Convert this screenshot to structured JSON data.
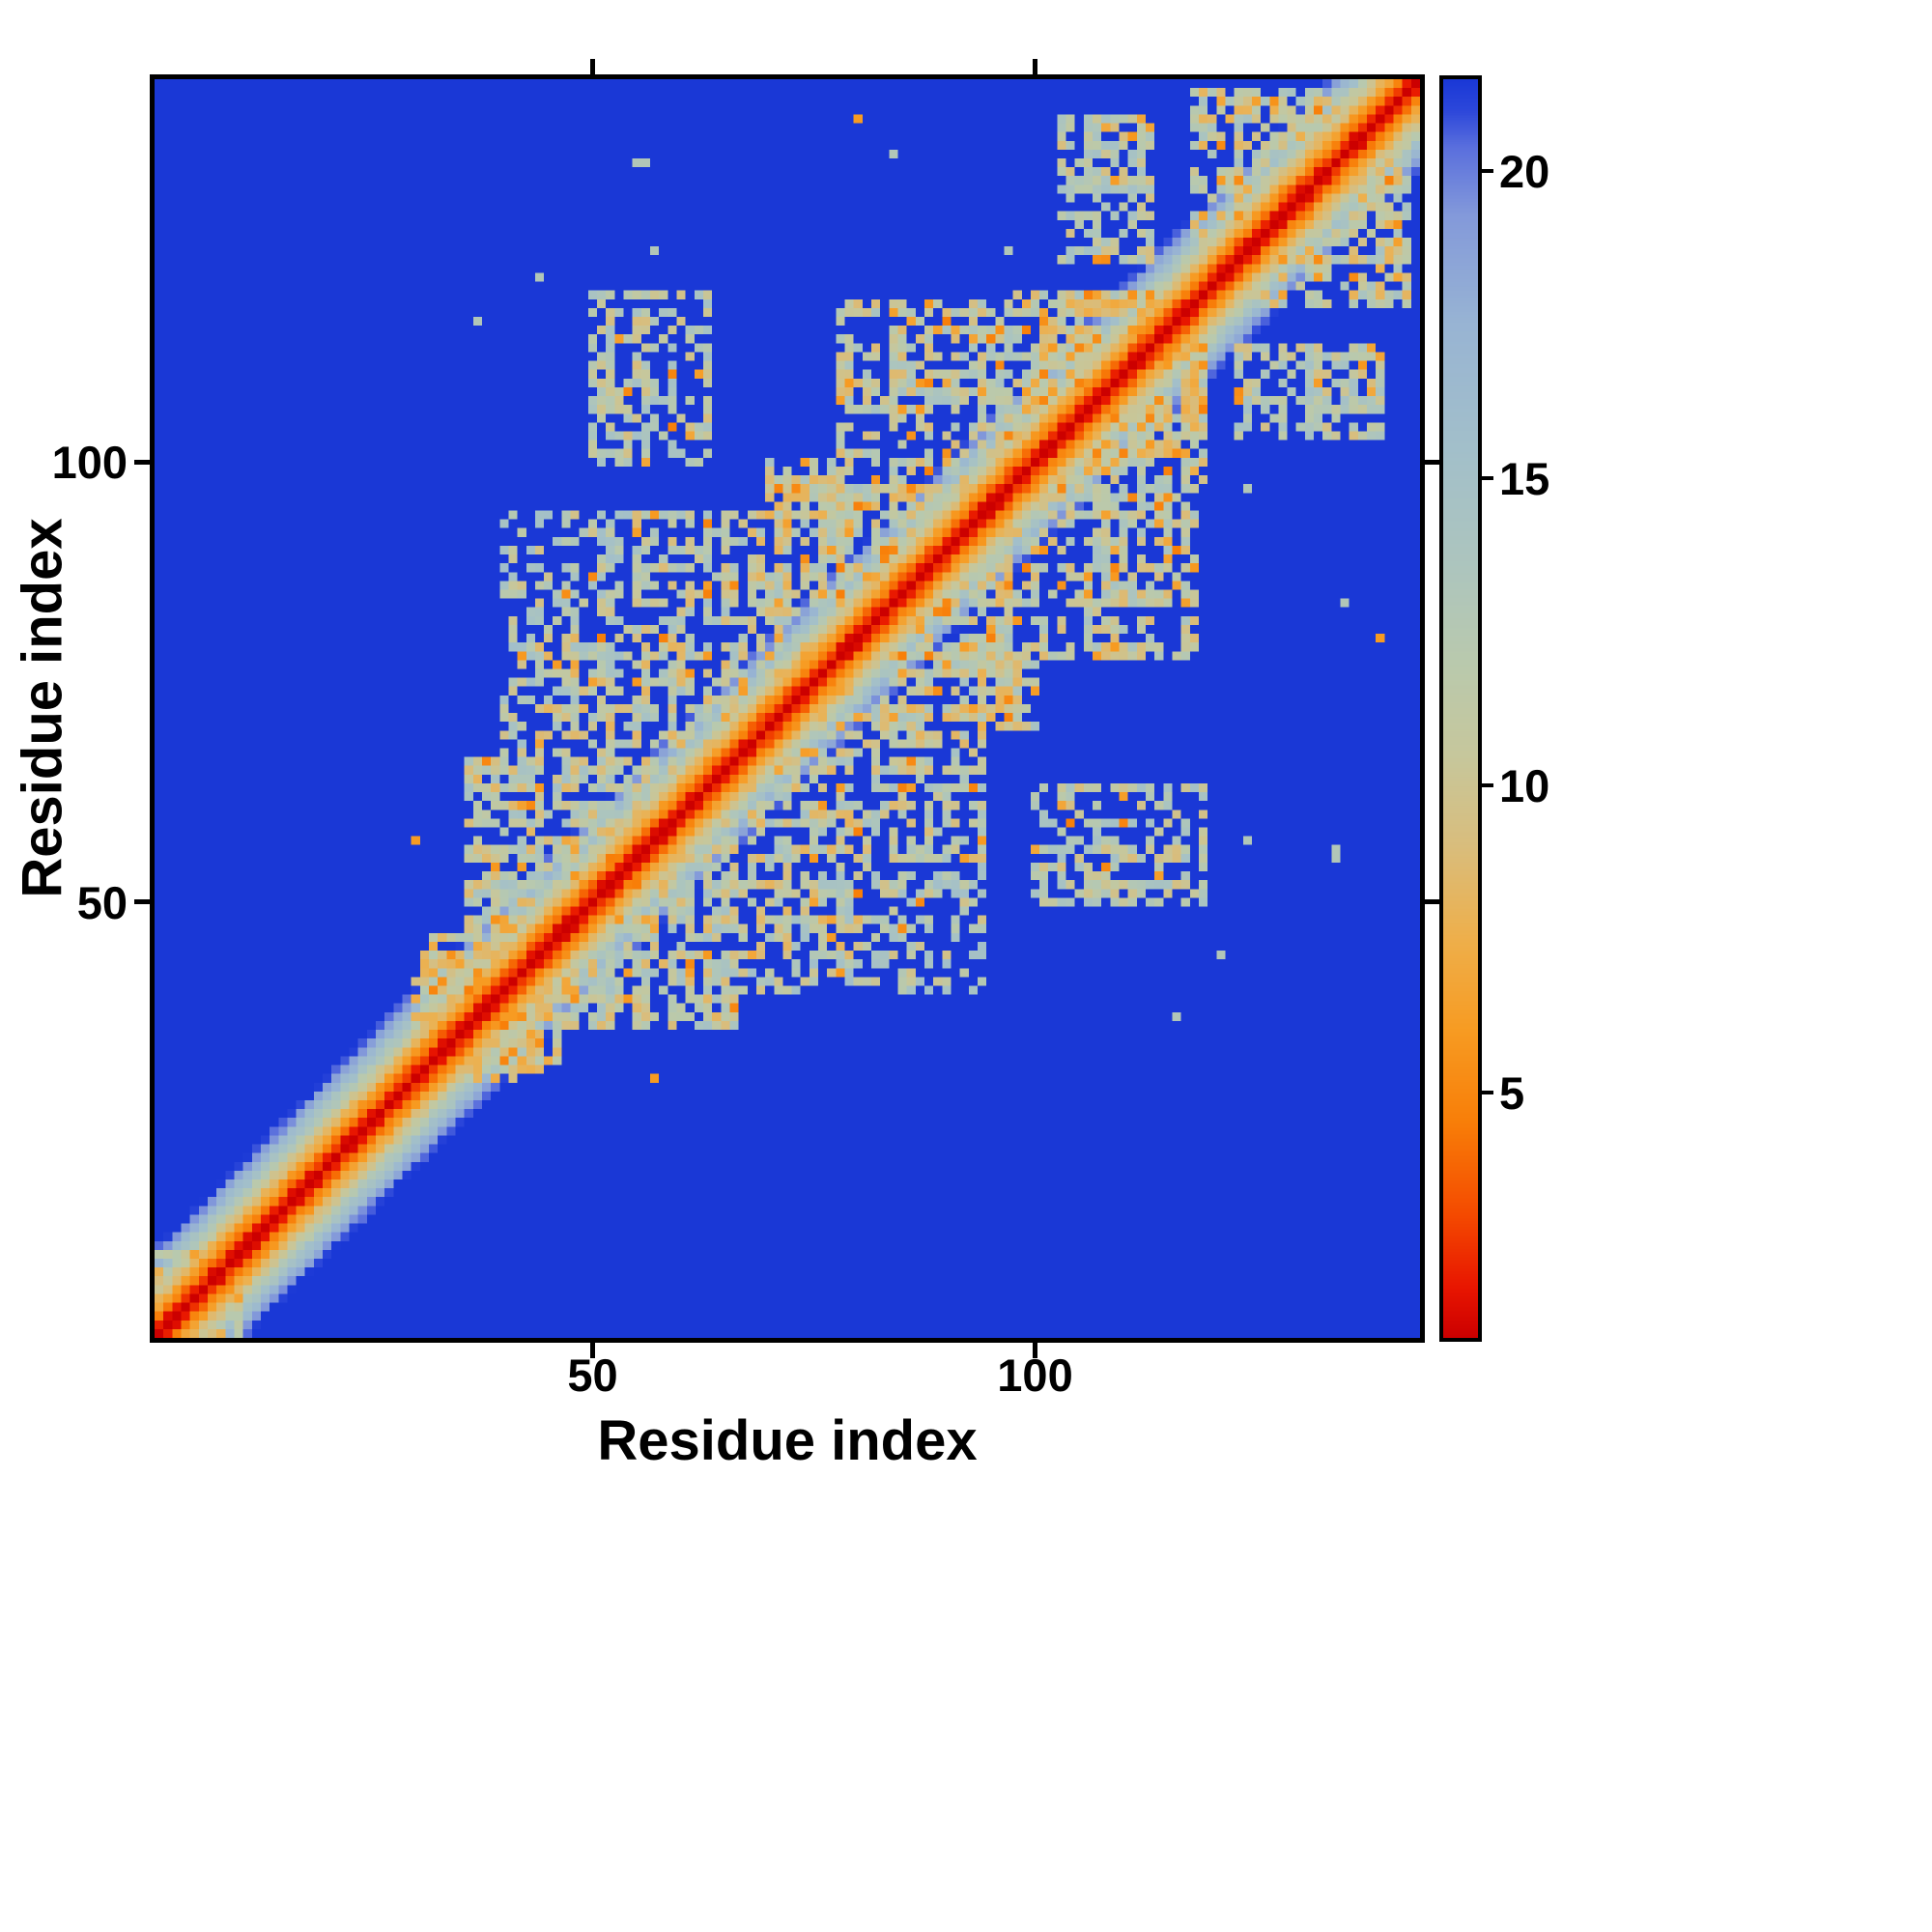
{
  "figure": {
    "kind": "protein residue-residue distance map heatmap"
  },
  "axes": {
    "x_label": "Residue index",
    "y_label": "Residue index",
    "x_ticks": [
      {
        "value": 50,
        "label": "50"
      },
      {
        "value": 100,
        "label": "100"
      }
    ],
    "y_ticks": [
      {
        "value": 50,
        "label": "50"
      },
      {
        "value": 100,
        "label": "100"
      }
    ]
  },
  "colorbar": {
    "ticks": [
      {
        "value": 5,
        "label": "5"
      },
      {
        "value": 10,
        "label": "10"
      },
      {
        "value": 15,
        "label": "15"
      },
      {
        "value": 20,
        "label": "20"
      }
    ],
    "vmin": 1,
    "vmax": 21.5,
    "orientation": "vertical",
    "low_color": "#cc0000",
    "high_color": "#1a38d6"
  },
  "chart_data": {
    "type": "heatmap",
    "title": "",
    "xlabel": "Residue index",
    "ylabel": "Residue index",
    "x_range": [
      1,
      143
    ],
    "y_range": [
      1,
      143
    ],
    "value_range": [
      1,
      21.5
    ],
    "grid": false,
    "legend": "colorbar-right",
    "background_value": 21.5,
    "colormap_stops": [
      [
        1.0,
        "#cc0000"
      ],
      [
        1.8,
        "#e81500"
      ],
      [
        3.0,
        "#f44a00"
      ],
      [
        4.5,
        "#f87e08"
      ],
      [
        6.0,
        "#f79b22"
      ],
      [
        7.5,
        "#eeaf4b"
      ],
      [
        9.0,
        "#d9bd7c"
      ],
      [
        10.5,
        "#c6c79c"
      ],
      [
        12.0,
        "#b9c9ad"
      ],
      [
        13.5,
        "#adc5bd"
      ],
      [
        15.5,
        "#a2bfca"
      ],
      [
        17.5,
        "#98b4d3"
      ],
      [
        19.3,
        "#8399da"
      ],
      [
        20.4,
        "#5a6fdd"
      ],
      [
        21.0,
        "#2c47da"
      ],
      [
        21.5,
        "#1a38d6"
      ]
    ],
    "matrix_model": {
      "n": 143,
      "symmetric": true,
      "band_slope": 2.1,
      "band_noise": 1.5,
      "speckle_value": 4.5,
      "speckle_spread": 2.5,
      "regions": [
        {
          "a": [
            1,
            10
          ],
          "b": [
            1,
            10
          ],
          "value": 9.5,
          "noise": 3.0,
          "density": 0.7,
          "speckle": 0.1
        },
        {
          "a": [
            30,
            44
          ],
          "b": [
            30,
            46
          ],
          "value": 10.5,
          "noise": 3.5,
          "density": 0.8,
          "speckle": 0.05
        },
        {
          "a": [
            36,
            58
          ],
          "b": [
            40,
            66
          ],
          "value": 11.5,
          "noise": 3.5,
          "density": 0.6,
          "speckle": 0.06
        },
        {
          "a": [
            44,
            70
          ],
          "b": [
            48,
            80
          ],
          "value": 11.5,
          "noise": 3.5,
          "density": 0.55,
          "speckle": 0.07
        },
        {
          "a": [
            55,
            82
          ],
          "b": [
            58,
            94
          ],
          "value": 11.5,
          "noise": 3.5,
          "density": 0.55,
          "speckle": 0.07
        },
        {
          "a": [
            70,
            97
          ],
          "b": [
            72,
            100
          ],
          "value": 11.0,
          "noise": 3.5,
          "density": 0.65,
          "speckle": 0.08
        },
        {
          "a": [
            40,
            62
          ],
          "b": [
            66,
            94
          ],
          "value": 12.5,
          "noise": 3.0,
          "density": 0.4,
          "speckle": 0.05
        },
        {
          "a": [
            50,
            63
          ],
          "b": [
            100,
            119
          ],
          "value": 12.0,
          "noise": 3.0,
          "density": 0.5,
          "speckle": 0.06
        },
        {
          "a": [
            78,
            97
          ],
          "b": [
            96,
            118
          ],
          "value": 11.5,
          "noise": 3.0,
          "density": 0.55,
          "speckle": 0.08
        },
        {
          "a": [
            98,
            119
          ],
          "b": [
            98,
            119
          ],
          "value": 10.5,
          "noise": 3.5,
          "density": 0.7,
          "speckle": 0.12
        },
        {
          "a": [
            103,
            113
          ],
          "b": [
            123,
            139
          ],
          "value": 12.0,
          "noise": 3.0,
          "density": 0.55,
          "speckle": 0.05
        },
        {
          "a": [
            118,
            142
          ],
          "b": [
            118,
            142
          ],
          "value": 11.0,
          "noise": 3.5,
          "density": 0.6,
          "speckle": 0.07
        },
        {
          "a": [
            86,
            96
          ],
          "b": [
            86,
            98
          ],
          "value": 10.5,
          "noise": 3.0,
          "density": 0.75,
          "speckle": 0.06
        }
      ],
      "dots": [
        [
          55,
          134,
          13
        ],
        [
          56,
          134,
          13
        ],
        [
          80,
          139,
          6
        ],
        [
          44,
          121,
          13
        ],
        [
          97,
          124,
          13
        ],
        [
          57,
          124,
          13
        ],
        [
          30,
          57,
          6
        ],
        [
          116,
          37,
          13
        ],
        [
          135,
          84,
          13
        ]
      ]
    }
  }
}
